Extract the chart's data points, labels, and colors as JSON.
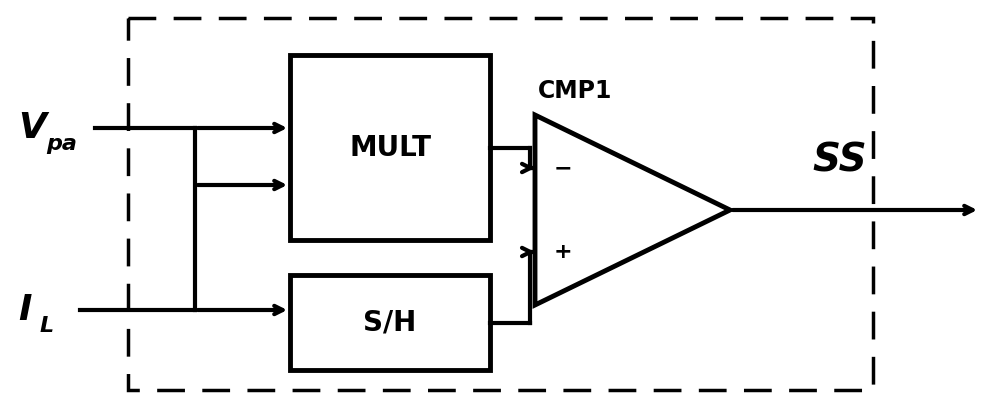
{
  "bg_color": "#ffffff",
  "line_color": "#000000",
  "figsize": [
    10.0,
    4.04
  ],
  "dpi": 100,
  "mult_label": "MULT",
  "sh_label": "S/H",
  "cmp_label": "CMP1",
  "ss_label": "SS",
  "vpa_main": "V",
  "vpa_sub": "pa",
  "il_main": "I",
  "il_sub": "L"
}
